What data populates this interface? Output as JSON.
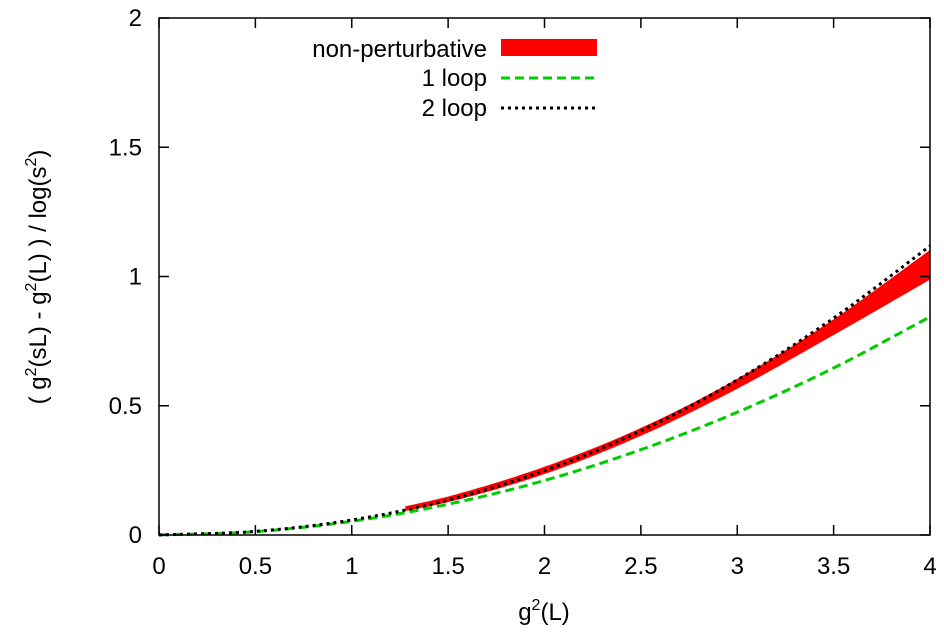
{
  "chart_data": {
    "type": "line",
    "title": "",
    "xlabel_parts": [
      "g",
      "2",
      "(L)"
    ],
    "ylabel_parts": [
      "( g",
      "2",
      "(sL) - g",
      "2",
      "(L) ) / log(s",
      "2",
      ")"
    ],
    "xlim": [
      0,
      4
    ],
    "ylim": [
      0,
      2
    ],
    "x_ticks": [
      "0",
      "0.5",
      "1",
      "1.5",
      "2",
      "2.5",
      "3",
      "3.5",
      "4"
    ],
    "y_ticks": [
      "0",
      "0.5",
      "1",
      "1.5",
      "2"
    ],
    "grid": false,
    "legend_position": "top-left",
    "series": [
      {
        "name": "non-perturbative",
        "style": "band",
        "color": "#ff0000",
        "x": [
          1.28,
          1.5,
          2.0,
          2.5,
          3.0,
          3.5,
          4.0
        ],
        "y_lower": [
          0.095,
          0.129,
          0.238,
          0.386,
          0.568,
          0.776,
          0.99
        ],
        "y_upper": [
          0.109,
          0.147,
          0.262,
          0.412,
          0.602,
          0.832,
          1.1
        ]
      },
      {
        "name": "1 loop",
        "style": "dashed",
        "color": "#00cc00",
        "x": [
          0,
          0.5,
          1.0,
          1.5,
          2.0,
          2.5,
          3.0,
          3.5,
          4.0
        ],
        "y": [
          0,
          0.013,
          0.053,
          0.119,
          0.211,
          0.33,
          0.475,
          0.646,
          0.844
        ]
      },
      {
        "name": "2 loop",
        "style": "dotted",
        "color": "#000000",
        "x": [
          0,
          0.5,
          1.0,
          1.5,
          2.0,
          2.5,
          3.0,
          3.5,
          4.0
        ],
        "y": [
          0,
          0.014,
          0.058,
          0.135,
          0.249,
          0.403,
          0.6,
          0.839,
          1.118
        ]
      }
    ]
  }
}
